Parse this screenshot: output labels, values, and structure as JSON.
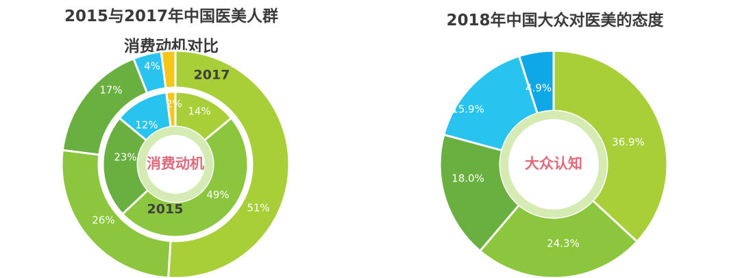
{
  "colors": {
    "yellow_green": "#a8cf38",
    "light_green": "#8cc63f",
    "green": "#6ab040",
    "cyan": "#28c3ee",
    "blue": "#0ea8e6",
    "yellow": "#f5c518",
    "pale_green_ring": "#d6ebb4",
    "pale_blue_ring": "#b9e6f7"
  },
  "chart_data": [
    {
      "type": "pie",
      "title": "2015与2017年中国医美人群消费动机对比",
      "title_line1": "2015与2017年中国医美人群",
      "title_line2": "消费动机对比",
      "center_label": "消费动机",
      "series": [
        {
          "name": "2017",
          "values": [
            51,
            26,
            17,
            4,
            2
          ],
          "labels": [
            "51%",
            "26%",
            "17%",
            "4%",
            ""
          ]
        },
        {
          "name": "2015",
          "values": [
            49,
            23,
            12,
            2,
            14
          ],
          "labels": [
            "49%",
            "23%",
            "12%",
            "2%",
            "14%"
          ]
        }
      ]
    },
    {
      "type": "pie",
      "title": "2018年中国大众对医美的态度",
      "center_label": "大众认知",
      "values": [
        36.9,
        24.3,
        18.0,
        15.9,
        4.9
      ],
      "labels": [
        "36.9%",
        "24.3%",
        "18.0%",
        "15.9%",
        "4.9%"
      ]
    }
  ]
}
